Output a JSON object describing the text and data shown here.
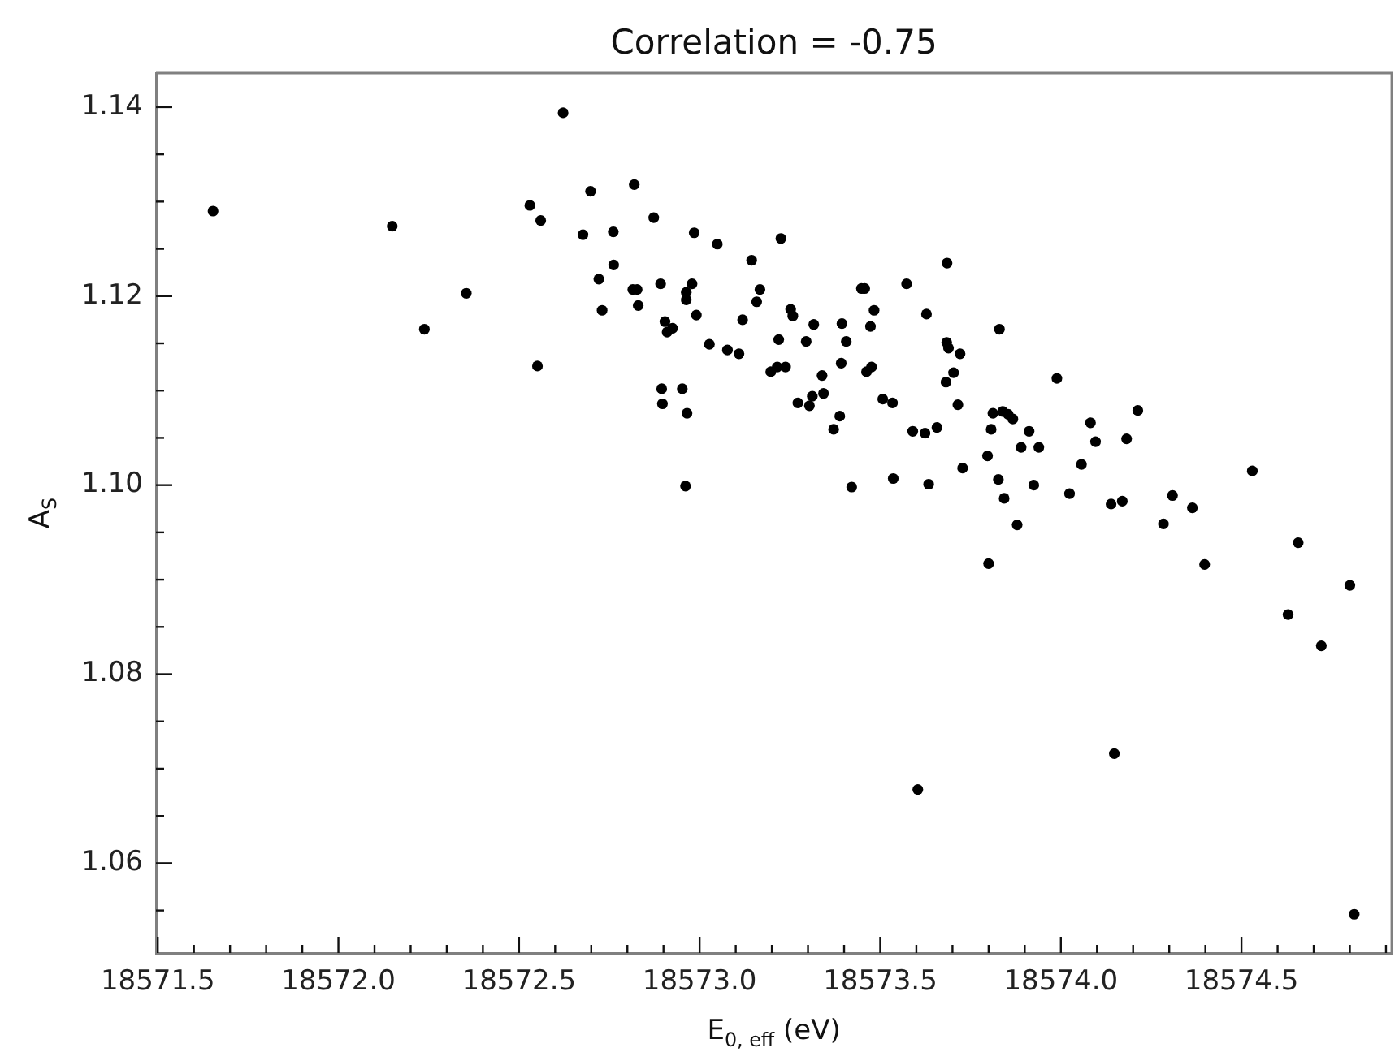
{
  "chart_data": {
    "type": "scatter",
    "title": "Correlation = -0.75",
    "xlabel": "E$_{0, eff}$ (eV)",
    "ylabel": "A$_{S}$",
    "marker": "circle",
    "series": [
      {
        "color": "#000000",
        "x": [
          18571.653,
          18572.149,
          18572.354,
          18572.238,
          18572.622,
          18572.698,
          18572.819,
          18572.53,
          18572.56,
          18572.677,
          18572.761,
          18572.873,
          18572.985,
          18573.049,
          18573.225,
          18573.144,
          18572.762,
          18572.721,
          18572.815,
          18572.827,
          18572.892,
          18572.979,
          18572.963,
          18572.963,
          18573.167,
          18573.158,
          18572.73,
          18572.83,
          18572.991,
          18572.904,
          18572.925,
          18572.91,
          18573.119,
          18573.252,
          18573.258,
          18573.219,
          18573.295,
          18573.027,
          18573.077,
          18573.109,
          18573.197,
          18573.215,
          18573.238,
          18572.551,
          18572.895,
          18572.952,
          18572.897,
          18572.965,
          18573.272,
          18573.304,
          18572.961,
          18573.685,
          18573.573,
          18573.448,
          18573.457,
          18573.483,
          18573.628,
          18573.83,
          18573.316,
          18573.394,
          18573.473,
          18573.406,
          18573.392,
          18573.462,
          18573.476,
          18573.684,
          18573.689,
          18573.721,
          18573.703,
          18573.682,
          18573.339,
          18573.312,
          18573.343,
          18573.507,
          18573.534,
          18573.388,
          18573.371,
          18573.715,
          18573.989,
          18573.59,
          18573.624,
          18573.657,
          18573.812,
          18573.839,
          18573.854,
          18573.867,
          18573.807,
          18573.912,
          18573.89,
          18573.939,
          18574.082,
          18574.096,
          18573.797,
          18574.057,
          18573.728,
          18573.421,
          18573.536,
          18573.634,
          18573.827,
          18573.843,
          18573.925,
          18574.024,
          18574.139,
          18573.879,
          18573.8,
          18574.213,
          18574.182,
          18574.17,
          18574.309,
          18574.284,
          18574.364,
          18574.398,
          18574.53,
          18574.657,
          18574.629,
          18574.721,
          18574.8,
          18574.148,
          18574.812,
          18573.604
        ],
        "values": [
          1.129,
          1.1274,
          1.1203,
          1.1165,
          1.1394,
          1.1311,
          1.1318,
          1.1296,
          1.128,
          1.1265,
          1.1268,
          1.1283,
          1.1267,
          1.1255,
          1.1261,
          1.1238,
          1.1233,
          1.1218,
          1.1207,
          1.1207,
          1.1213,
          1.1213,
          1.1204,
          1.1196,
          1.1207,
          1.1194,
          1.1185,
          1.119,
          1.118,
          1.1173,
          1.1166,
          1.1162,
          1.1175,
          1.1186,
          1.1179,
          1.1154,
          1.1152,
          1.1149,
          1.1143,
          1.1139,
          1.112,
          1.1125,
          1.1125,
          1.1126,
          1.1102,
          1.1102,
          1.1086,
          1.1076,
          1.1087,
          1.1084,
          1.0999,
          1.1235,
          1.1213,
          1.1208,
          1.1208,
          1.1185,
          1.1181,
          1.1165,
          1.117,
          1.1171,
          1.1168,
          1.1152,
          1.1129,
          1.112,
          1.1125,
          1.1151,
          1.1145,
          1.1139,
          1.1119,
          1.1109,
          1.1116,
          1.1094,
          1.1097,
          1.1091,
          1.1087,
          1.1073,
          1.1059,
          1.1085,
          1.1113,
          1.1057,
          1.1055,
          1.1061,
          1.1076,
          1.1078,
          1.1075,
          1.107,
          1.1059,
          1.1057,
          1.104,
          1.104,
          1.1066,
          1.1046,
          1.1031,
          1.1022,
          1.1018,
          1.0998,
          1.1007,
          1.1001,
          1.1006,
          1.0986,
          1.1,
          1.0991,
          1.098,
          1.0958,
          1.0917,
          1.1079,
          1.1049,
          1.0983,
          1.0989,
          1.0959,
          1.0976,
          1.0916,
          1.1015,
          1.0939,
          1.0863,
          1.083,
          1.0894,
          1.0716,
          1.0546,
          1.0678
        ]
      }
    ],
    "xlim": [
      18571.495,
      18574.916
    ],
    "xticks": [
      18571.5,
      {
        "value": 18571.6,
        "label": null
      },
      {
        "value": 18571.7,
        "label": null
      },
      {
        "value": 18571.8,
        "label": null
      },
      {
        "value": 18571.9,
        "label": null
      },
      {
        "value": 18572.0,
        "label": "18572.0"
      },
      {
        "value": 18572.1,
        "label": null
      },
      {
        "value": 18572.2,
        "label": null
      },
      {
        "value": 18572.3,
        "label": null
      },
      {
        "value": 18572.4,
        "label": null
      },
      18572.5,
      {
        "value": 18572.6,
        "label": null
      },
      {
        "value": 18572.7,
        "label": null
      },
      {
        "value": 18572.8,
        "label": null
      },
      {
        "value": 18572.9,
        "label": null
      },
      {
        "value": 18573.0,
        "label": "18573.0"
      },
      {
        "value": 18573.1,
        "label": null
      },
      {
        "value": 18573.2,
        "label": null
      },
      {
        "value": 18573.3,
        "label": null
      },
      {
        "value": 18573.4,
        "label": null
      },
      18573.5,
      {
        "value": 18573.6,
        "label": null
      },
      {
        "value": 18573.7,
        "label": null
      },
      {
        "value": 18573.8,
        "label": null
      },
      {
        "value": 18573.9,
        "label": null
      },
      {
        "value": 18574.0,
        "label": "18574.0"
      },
      {
        "value": 18574.1,
        "label": null
      },
      {
        "value": 18574.2,
        "label": null
      },
      {
        "value": 18574.3,
        "label": null
      },
      {
        "value": 18574.4,
        "label": null
      },
      18574.5,
      {
        "value": 18574.6,
        "label": null
      },
      {
        "value": 18574.7,
        "label": null
      },
      {
        "value": 18574.8,
        "label": null
      },
      {
        "value": 18574.9,
        "label": null
      }
    ],
    "ylim": [
      1.0505,
      1.1436
    ],
    "yticks": [
      {
        "value": 1.055,
        "label": null
      },
      1.06,
      {
        "value": 1.065,
        "label": null
      },
      {
        "value": 1.07,
        "label": null
      },
      {
        "value": 1.075,
        "label": null
      },
      1.08,
      {
        "value": 1.085,
        "label": null
      },
      {
        "value": 1.09,
        "label": null
      },
      {
        "value": 1.095,
        "label": null
      },
      {
        "value": 1.1,
        "label": "1.10"
      },
      {
        "value": 1.105,
        "label": null
      },
      {
        "value": 1.11,
        "label": null
      },
      {
        "value": 1.115,
        "label": null
      },
      1.12,
      {
        "value": 1.125,
        "label": null
      },
      {
        "value": 1.13,
        "label": null
      },
      {
        "value": 1.135,
        "label": null
      },
      1.14
    ]
  }
}
